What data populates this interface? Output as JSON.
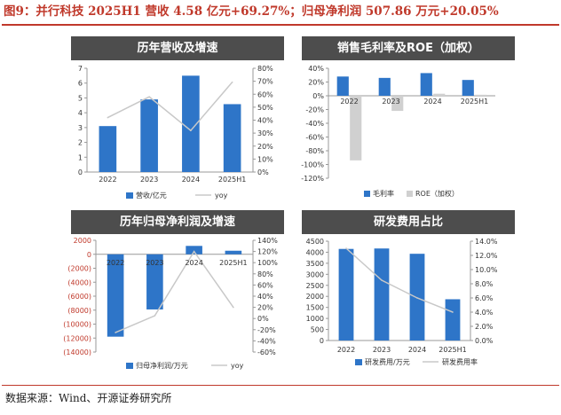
{
  "figure_title": "图9：并行科技 2025H1 营收 4.58 亿元+69.27%；归母净利润 507.86 万元+20.05%",
  "source": "数据来源：Wind、开源证券研究所",
  "colors": {
    "bar": "#2e75c8",
    "line": "#c8c8c8",
    "bar_gray": "#d0d0d0",
    "header": "#4d4d4d",
    "accent": "#c0392b"
  },
  "chart_data": [
    {
      "type": "bar",
      "title": "历年营收及增速",
      "categories": [
        "2022",
        "2023",
        "2024",
        "2025H1"
      ],
      "series": [
        {
          "name": "营收/亿元",
          "type": "bar",
          "axis": "left",
          "values": [
            3.1,
            4.9,
            6.5,
            4.58
          ]
        },
        {
          "name": "yoy",
          "type": "line",
          "axis": "right",
          "values": [
            42,
            58,
            32,
            69.27
          ]
        }
      ],
      "ylim_left": [
        0,
        7
      ],
      "yticks_left": [
        "0",
        "1",
        "2",
        "3",
        "4",
        "5",
        "6",
        "7"
      ],
      "ylim_right": [
        0,
        80
      ],
      "yticks_right": [
        "0%",
        "10%",
        "20%",
        "30%",
        "40%",
        "50%",
        "60%",
        "70%",
        "80%"
      ],
      "legend": "bottom"
    },
    {
      "type": "bar",
      "title": "销售毛利率及ROE（加权）",
      "categories": [
        "2022",
        "2023",
        "2024",
        "2025H1"
      ],
      "series": [
        {
          "name": "毛利率",
          "values": [
            28,
            26,
            33,
            23
          ]
        },
        {
          "name": "ROE（加权）",
          "values": [
            -94,
            -22,
            3,
            1.5
          ]
        }
      ],
      "ylim": [
        -120,
        40
      ],
      "yticks": [
        "40%",
        "20%",
        "0%",
        "-20%",
        "-40%",
        "-60%",
        "-80%",
        "-100%",
        "-120%"
      ],
      "legend": "bottom"
    },
    {
      "type": "bar",
      "title": "历年归母净利润及增速",
      "categories": [
        "2022",
        "2023",
        "2024",
        "2025H1"
      ],
      "series": [
        {
          "name": "归母净利润/万元",
          "type": "bar",
          "axis": "left",
          "values": [
            -11800,
            -7900,
            1200,
            507.86
          ]
        },
        {
          "name": "yoy",
          "type": "line",
          "axis": "right",
          "values": [
            -25,
            5,
            120,
            20.05
          ]
        }
      ],
      "ylim_left": [
        -14000,
        2000
      ],
      "yticks_left": [
        "2000",
        "0",
        "(2000)",
        "(4000)",
        "(6000)",
        "(8000)",
        "(10000)",
        "(12000)",
        "(14000)"
      ],
      "ylim_right": [
        -60,
        140
      ],
      "yticks_right": [
        "140%",
        "120%",
        "100%",
        "80%",
        "60%",
        "40%",
        "20%",
        "0%",
        "-20%",
        "-40%",
        "-60%"
      ],
      "legend": "bottom"
    },
    {
      "type": "bar",
      "title": "研发费用占比",
      "categories": [
        "2022",
        "2023",
        "2024",
        "2025H1"
      ],
      "series": [
        {
          "name": "研发费用/万元",
          "type": "bar",
          "axis": "left",
          "values": [
            4150,
            4170,
            3930,
            1870
          ]
        },
        {
          "name": "研发费用率",
          "type": "line",
          "axis": "right",
          "values": [
            13.0,
            8.5,
            6.0,
            4.0
          ]
        }
      ],
      "ylim_left": [
        0,
        4500
      ],
      "yticks_left": [
        "0",
        "500",
        "1000",
        "1500",
        "2000",
        "2500",
        "3000",
        "3500",
        "4000",
        "4500"
      ],
      "ylim_right": [
        0,
        14
      ],
      "yticks_right": [
        "0.0%",
        "2.0%",
        "4.0%",
        "6.0%",
        "8.0%",
        "10.0%",
        "12.0%",
        "14.0%"
      ],
      "legend": "bottom"
    }
  ]
}
